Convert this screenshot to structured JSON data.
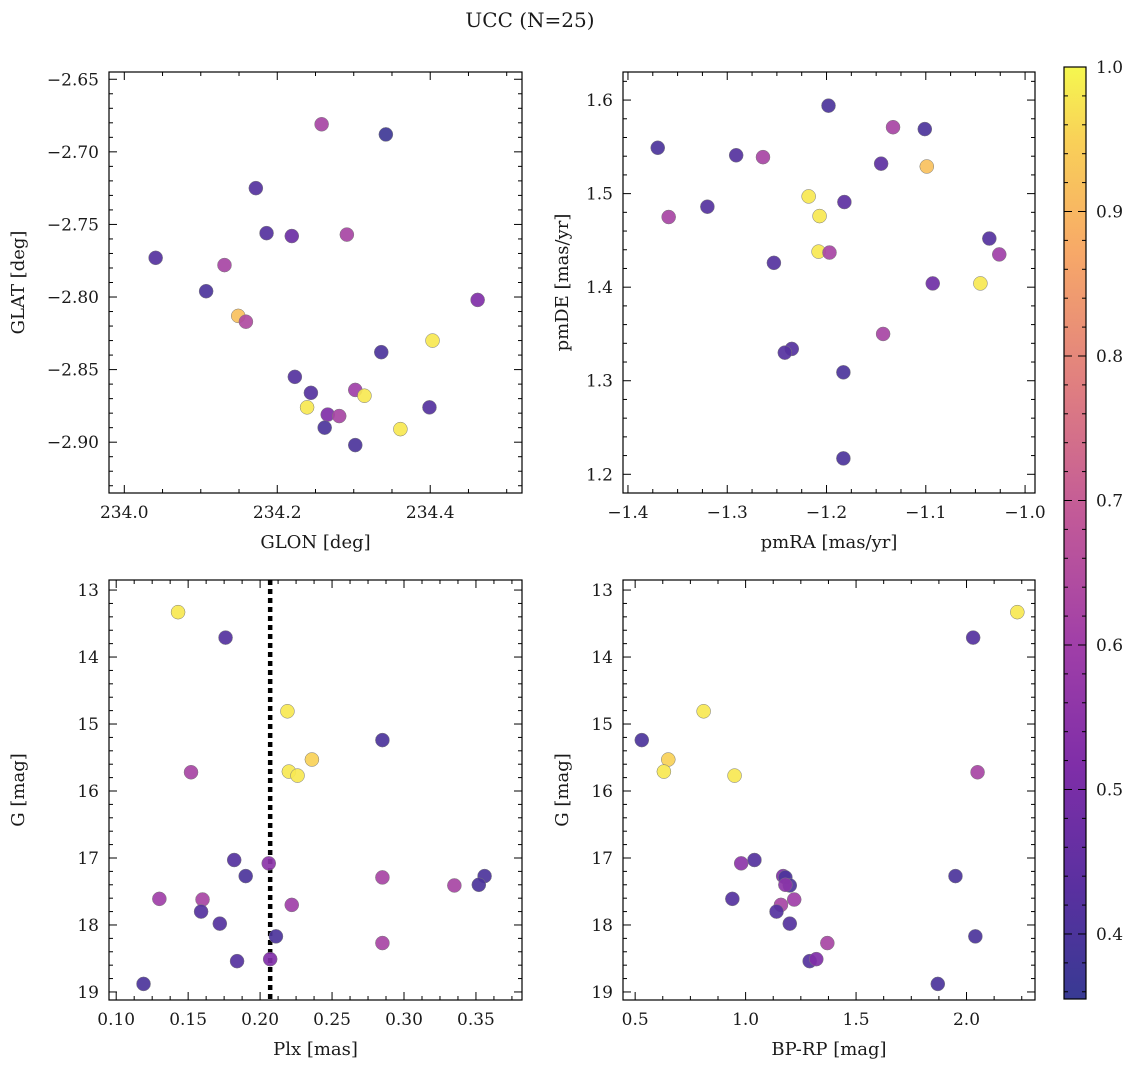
{
  "title": "UCC (N=25)",
  "colorbar": {
    "ticks": [
      "0.4",
      "0.5",
      "0.6",
      "0.7",
      "0.8",
      "0.9",
      "1.0"
    ],
    "range": [
      0.355,
      1.0
    ],
    "colormap": "plasma"
  },
  "chart_data": [
    {
      "type": "scatter",
      "name": "glon-glat",
      "xlabel": "GLON [deg]",
      "ylabel": "GLAT [deg]",
      "xlim": [
        233.98,
        234.52
      ],
      "ylim": [
        -2.935,
        -2.645
      ],
      "x_ticks": [
        "234.0",
        "234.2",
        "234.4"
      ],
      "y_ticks": [
        "−2.65",
        "−2.70",
        "−2.75",
        "−2.80",
        "−2.85",
        "−2.90"
      ],
      "x": [
        234.258,
        234.342,
        234.172,
        234.186,
        234.219,
        234.291,
        234.041,
        234.131,
        234.107,
        234.149,
        234.159,
        234.462,
        234.403,
        234.336,
        234.223,
        234.244,
        234.302,
        234.314,
        234.239,
        234.266,
        234.281,
        234.262,
        234.361,
        234.399,
        234.302
      ],
      "y": [
        -2.681,
        -2.688,
        -2.725,
        -2.756,
        -2.758,
        -2.757,
        -2.773,
        -2.778,
        -2.796,
        -2.813,
        -2.817,
        -2.802,
        -2.83,
        -2.838,
        -2.855,
        -2.866,
        -2.864,
        -2.868,
        -2.876,
        -2.881,
        -2.882,
        -2.89,
        -2.891,
        -2.876,
        -2.902
      ],
      "c": [
        0.62,
        0.37,
        0.42,
        0.42,
        0.47,
        0.62,
        0.42,
        0.62,
        0.4,
        0.92,
        0.64,
        0.52,
        0.98,
        0.4,
        0.42,
        0.42,
        0.6,
        0.98,
        0.98,
        0.52,
        0.62,
        0.4,
        0.98,
        0.42,
        0.4
      ]
    },
    {
      "type": "scatter",
      "name": "pmra-pmde",
      "xlabel": "pmRA [mas/yr]",
      "ylabel": "pmDE [mas/yr]",
      "xlim": [
        -1.405,
        -0.99
      ],
      "ylim": [
        1.18,
        1.63
      ],
      "x_ticks": [
        "−1.4",
        "−1.3",
        "−1.2",
        "−1.1",
        "−1.0"
      ],
      "y_ticks": [
        "1.2",
        "1.3",
        "1.4",
        "1.5",
        "1.6"
      ],
      "x": [
        -1.198,
        -1.133,
        -1.101,
        -1.37,
        -1.291,
        -1.264,
        -1.145,
        -1.099,
        -1.218,
        -1.359,
        -1.32,
        -1.182,
        -1.207,
        -1.208,
        -1.197,
        -1.253,
        -1.036,
        -1.026,
        -1.093,
        -1.045,
        -1.143,
        -1.235,
        -1.242,
        -1.183,
        -1.183
      ],
      "y": [
        1.594,
        1.571,
        1.569,
        1.549,
        1.541,
        1.539,
        1.532,
        1.529,
        1.497,
        1.475,
        1.486,
        1.491,
        1.476,
        1.438,
        1.437,
        1.426,
        1.452,
        1.435,
        1.404,
        1.404,
        1.35,
        1.334,
        1.33,
        1.309,
        1.217
      ],
      "c": [
        0.4,
        0.62,
        0.4,
        0.4,
        0.42,
        0.62,
        0.44,
        0.92,
        0.98,
        0.62,
        0.42,
        0.44,
        0.98,
        0.98,
        0.62,
        0.42,
        0.42,
        0.6,
        0.48,
        0.98,
        0.62,
        0.42,
        0.42,
        0.4,
        0.4
      ]
    },
    {
      "type": "scatter",
      "name": "plx-g",
      "xlabel": "Plx [mas]",
      "ylabel": "G [mag]",
      "xlim": [
        0.095,
        0.382
      ],
      "ylim": [
        19.12,
        12.85
      ],
      "x_ticks": [
        "0.10",
        "0.15",
        "0.20",
        "0.25",
        "0.30",
        "0.35"
      ],
      "y_ticks": [
        "13",
        "14",
        "15",
        "16",
        "17",
        "18",
        "19"
      ],
      "vline": 0.207,
      "x": [
        0.143,
        0.176,
        0.219,
        0.285,
        0.152,
        0.22,
        0.236,
        0.226,
        0.182,
        0.206,
        0.19,
        0.285,
        0.335,
        0.356,
        0.352,
        0.13,
        0.16,
        0.159,
        0.222,
        0.172,
        0.211,
        0.285,
        0.184,
        0.207,
        0.119
      ],
      "y": [
        13.33,
        13.71,
        14.81,
        15.24,
        15.72,
        15.71,
        15.53,
        15.77,
        17.03,
        17.08,
        17.27,
        17.29,
        17.41,
        17.27,
        17.4,
        17.61,
        17.62,
        17.8,
        17.7,
        17.98,
        18.17,
        18.27,
        18.54,
        18.51,
        18.88
      ],
      "c": [
        0.98,
        0.42,
        0.98,
        0.4,
        0.62,
        0.98,
        0.95,
        0.98,
        0.42,
        0.55,
        0.4,
        0.62,
        0.62,
        0.4,
        0.4,
        0.6,
        0.62,
        0.42,
        0.6,
        0.42,
        0.4,
        0.62,
        0.42,
        0.52,
        0.4
      ]
    },
    {
      "type": "scatter",
      "name": "bprp-g",
      "xlabel": "BP-RP [mag]",
      "ylabel": "G [mag]",
      "xlim": [
        0.445,
        2.31
      ],
      "ylim": [
        19.12,
        12.85
      ],
      "x_ticks": [
        "0.5",
        "1.0",
        "1.5",
        "2.0"
      ],
      "y_ticks": [
        "13",
        "14",
        "15",
        "16",
        "17",
        "18",
        "19"
      ],
      "x": [
        2.23,
        2.03,
        0.81,
        0.53,
        0.65,
        0.63,
        0.95,
        2.05,
        1.04,
        0.98,
        1.17,
        1.18,
        1.2,
        1.95,
        0.94,
        1.22,
        1.16,
        1.14,
        1.2,
        2.04,
        1.37,
        1.29,
        1.32,
        1.87,
        1.18
      ],
      "y": [
        13.33,
        13.71,
        14.81,
        15.24,
        15.53,
        15.71,
        15.77,
        15.72,
        17.03,
        17.08,
        17.27,
        17.29,
        17.41,
        17.27,
        17.61,
        17.62,
        17.7,
        17.8,
        17.98,
        18.17,
        18.27,
        18.54,
        18.51,
        18.88,
        17.4
      ],
      "c": [
        0.98,
        0.42,
        0.98,
        0.4,
        0.95,
        0.98,
        0.98,
        0.62,
        0.42,
        0.55,
        0.52,
        0.4,
        0.4,
        0.4,
        0.42,
        0.6,
        0.62,
        0.42,
        0.42,
        0.4,
        0.62,
        0.42,
        0.52,
        0.4,
        0.55
      ]
    }
  ]
}
